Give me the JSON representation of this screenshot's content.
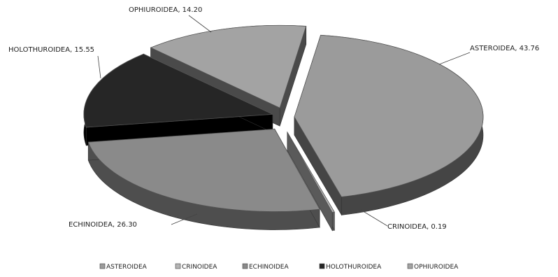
{
  "chart_data": {
    "type": "pie",
    "style": "3d-exploded",
    "categories": [
      "ASTEROIDEA",
      "CRINOIDEA",
      "ECHINOIDEA",
      "HOLOTHUROIDEA",
      "OPHIUROIDEA"
    ],
    "values": [
      43.76,
      0.19,
      26.3,
      15.55,
      14.2
    ],
    "data_labels": [
      "ASTEROIDEA, 43.76",
      "CRINOIDEA, 0.19",
      "ECHINOIDEA, 26.30",
      "HOLOTHUROIDEA, 15.55",
      "OPHIUROIDEA, 14.20"
    ],
    "colors": [
      "#9b9b9b",
      "#b5b5b5",
      "#8a8a8a",
      "#262626",
      "#a3a3a3"
    ],
    "side_colors": [
      "#454545",
      "#5a5a5a",
      "#4e4e4e",
      "#000000",
      "#4a4a4a"
    ],
    "legend_position": "bottom",
    "title": ""
  }
}
